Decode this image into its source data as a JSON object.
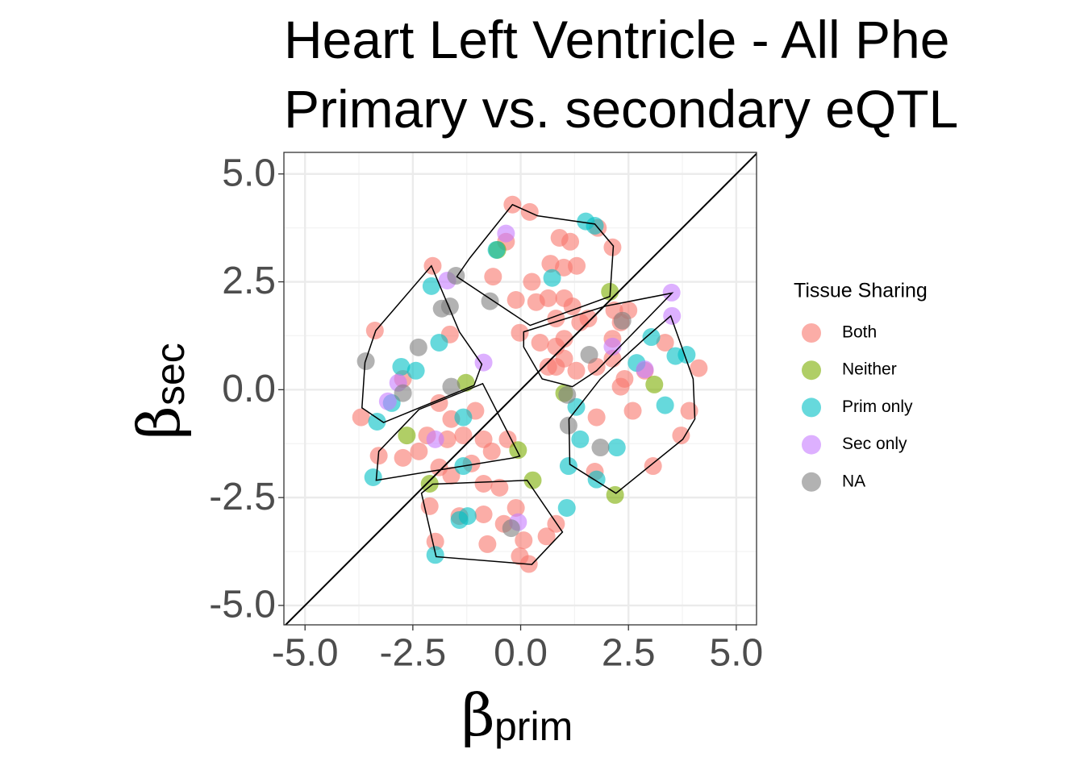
{
  "chart_data": {
    "type": "scatter",
    "title": [
      "Heart Left Ventricle - All Phe",
      "Primary vs. secondary eQTL"
    ],
    "xlabel": {
      "symbol": "β",
      "subscript": "prim"
    },
    "ylabel": {
      "symbol": "β",
      "subscript": "sec"
    },
    "xlim": [
      -5.49,
      5.47
    ],
    "ylim": [
      -5.45,
      5.5
    ],
    "xticks": [
      {
        "value": -5,
        "label": "-5.0"
      },
      -2.5,
      {
        "value": 0,
        "label": "0.0"
      },
      2.5,
      {
        "value": 5,
        "label": "5.0"
      }
    ],
    "yticks": [
      {
        "value": -5,
        "label": "-5.0"
      },
      -2.5,
      {
        "value": 0,
        "label": "0.0"
      },
      2.5,
      {
        "value": 5,
        "label": "5.0"
      }
    ],
    "minor_ticks": [
      -3.75,
      -1.25,
      1.25,
      3.75
    ],
    "grid": true,
    "reference_line": {
      "slope": 1,
      "intercept": 0
    },
    "legend_title": "Tissue Sharing",
    "legend": "right",
    "series": [
      {
        "name": "Both",
        "color": "#F8766D",
        "x": [
          -0.19,
          0.21,
          -0.34,
          -0.64,
          1.79,
          2.13,
          0.9,
          1.15,
          1.0,
          1.3,
          0.69,
          0.26,
          -0.11,
          0.36,
          1.01,
          0.82,
          1.57,
          2.17,
          2.5,
          2.32,
          -0.02,
          0.45,
          0.82,
          1.01,
          0.64,
          1.29,
          1.76,
          2.13,
          2.41,
          2.88,
          3.35,
          4.13,
          3.91,
          3.72,
          3.07,
          2.6,
          1.76,
          1.72,
          0.82,
          0.6,
          0.19,
          -0.02,
          0.07,
          -0.39,
          -0.77,
          -0.86,
          -1.42,
          -1.98,
          -2.11,
          -2.04,
          -1.64,
          -3.38,
          -3.7,
          -2.73,
          -3.29,
          -2.73,
          -2.36,
          -1.89,
          -1.61,
          -1.33,
          -1.05,
          -0.86,
          -0.67,
          -0.3,
          -1.14,
          -1.61,
          -0.86,
          -0.49,
          -1.89,
          -2.17,
          -1.7,
          -0.11,
          0.82,
          1.01,
          1.38,
          1.2,
          0.64,
          2.32,
          2.13
        ],
        "y": [
          4.29,
          4.12,
          3.43,
          2.62,
          3.75,
          3.3,
          3.52,
          3.43,
          2.83,
          2.87,
          2.92,
          2.5,
          2.08,
          2.03,
          2.12,
          1.65,
          1.65,
          1.84,
          1.84,
          1.56,
          1.32,
          1.09,
          1.0,
          0.72,
          0.53,
          0.44,
          0.53,
          0.72,
          0.25,
          0.44,
          1.09,
          0.5,
          -0.49,
          -1.06,
          -1.77,
          -0.49,
          -0.64,
          -1.9,
          -3.11,
          -3.4,
          -4.04,
          -3.86,
          -3.49,
          -3.11,
          -3.58,
          -2.89,
          -2.93,
          -3.52,
          -2.7,
          2.87,
          1.28,
          1.37,
          -0.64,
          0.25,
          -1.53,
          -1.58,
          -1.43,
          -0.31,
          -0.68,
          -1.06,
          -0.49,
          -1.15,
          -1.43,
          -1.15,
          -1.71,
          -1.99,
          -2.18,
          -2.27,
          -1.8,
          -1.06,
          -1.15,
          -2.74,
          0.53,
          1.18,
          1.56,
          1.93,
          2.12,
          0.07,
          1.18
        ]
      },
      {
        "name": "Neither",
        "color": "#7CAE00",
        "x": [
          2.07,
          3.1,
          2.19,
          0.28,
          -0.06,
          -2.64,
          -2.11,
          -1.27,
          -0.54,
          1.01
        ],
        "y": [
          2.27,
          0.12,
          -2.44,
          -2.1,
          -1.4,
          -1.06,
          -2.18,
          0.16,
          3.24,
          -0.08
        ]
      },
      {
        "name": "Prim only",
        "color": "#00BFC4",
        "x": [
          1.51,
          -0.56,
          0.73,
          -2.07,
          -1.89,
          -2.77,
          -2.43,
          -2.99,
          -3.33,
          -3.42,
          -1.33,
          -1.33,
          -1.23,
          -1.98,
          1.07,
          1.11,
          1.76,
          2.23,
          1.38,
          1.29,
          2.69,
          3.35,
          3.59,
          3.85,
          3.03,
          1.72,
          -1.42
        ],
        "y": [
          3.9,
          3.24,
          2.59,
          2.4,
          1.09,
          0.53,
          0.44,
          -0.31,
          -0.74,
          -2.03,
          -0.64,
          -1.77,
          -2.93,
          -3.83,
          -2.74,
          -1.77,
          -2.08,
          -1.34,
          -1.15,
          -0.4,
          0.62,
          -0.36,
          0.78,
          0.81,
          1.22,
          3.8,
          -3.02
        ]
      },
      {
        "name": "Sec only",
        "color": "#C77CFF",
        "x": [
          -0.34,
          -1.7,
          -0.86,
          -2.84,
          -3.08,
          -1.98,
          -0.06,
          2.88,
          3.5,
          3.51,
          2.13
        ],
        "y": [
          3.62,
          2.53,
          0.63,
          0.16,
          -0.27,
          -1.15,
          -3.07,
          0.47,
          2.25,
          1.71,
          1.0
        ]
      },
      {
        "name": "NA",
        "color": "#7F7F7F",
        "x": [
          -3.59,
          -2.37,
          -1.5,
          -1.83,
          -1.64,
          -0.71,
          -2.73,
          -1.61,
          -0.22,
          1.85,
          1.11,
          1.59,
          2.36,
          1.08
        ],
        "y": [
          0.66,
          0.98,
          2.64,
          1.88,
          1.93,
          2.05,
          -0.08,
          0.07,
          -3.21,
          -1.34,
          -0.83,
          0.81,
          1.6,
          -0.12
        ]
      }
    ],
    "hulls": [
      {
        "x": [
          -0.19,
          0.39,
          1.72,
          2.15,
          2.07,
          0.22,
          -1.48,
          -1.18
        ],
        "y": [
          4.29,
          4.03,
          3.84,
          3.33,
          2.16,
          1.49,
          2.62,
          3.05
        ]
      },
      {
        "x": [
          -2.07,
          -1.42,
          -0.9,
          -1.08,
          -3.18,
          -3.68,
          -3.61,
          -3.36
        ],
        "y": [
          2.87,
          1.34,
          0.59,
          0.1,
          -0.76,
          -0.42,
          0.63,
          1.37
        ]
      },
      {
        "x": [
          0.07,
          1.98,
          3.51,
          1.76,
          1.2,
          0.5,
          0.07
        ],
        "y": [
          1.34,
          1.94,
          2.24,
          0.44,
          0.07,
          0.25,
          0.99
        ]
      },
      {
        "x": [
          3.48,
          4.0,
          4.04,
          3.76,
          2.21,
          1.14,
          1.12,
          1.85,
          2.88
        ],
        "y": [
          1.71,
          0.25,
          -0.68,
          -1.15,
          -2.4,
          -1.73,
          -0.68,
          0.25,
          1.19
        ]
      },
      {
        "x": [
          -0.88,
          -0.02,
          -0.17,
          -3.35,
          -3.29,
          -2.36
        ],
        "y": [
          0.14,
          -1.54,
          -1.58,
          -2.1,
          -1.43,
          -0.46
        ]
      },
      {
        "x": [
          -1.96,
          -2.3,
          -2.04,
          0.15,
          0.97,
          0.26
        ],
        "y": [
          -3.87,
          -2.4,
          -2.19,
          -2.1,
          -3.3,
          -4.05
        ]
      }
    ]
  }
}
